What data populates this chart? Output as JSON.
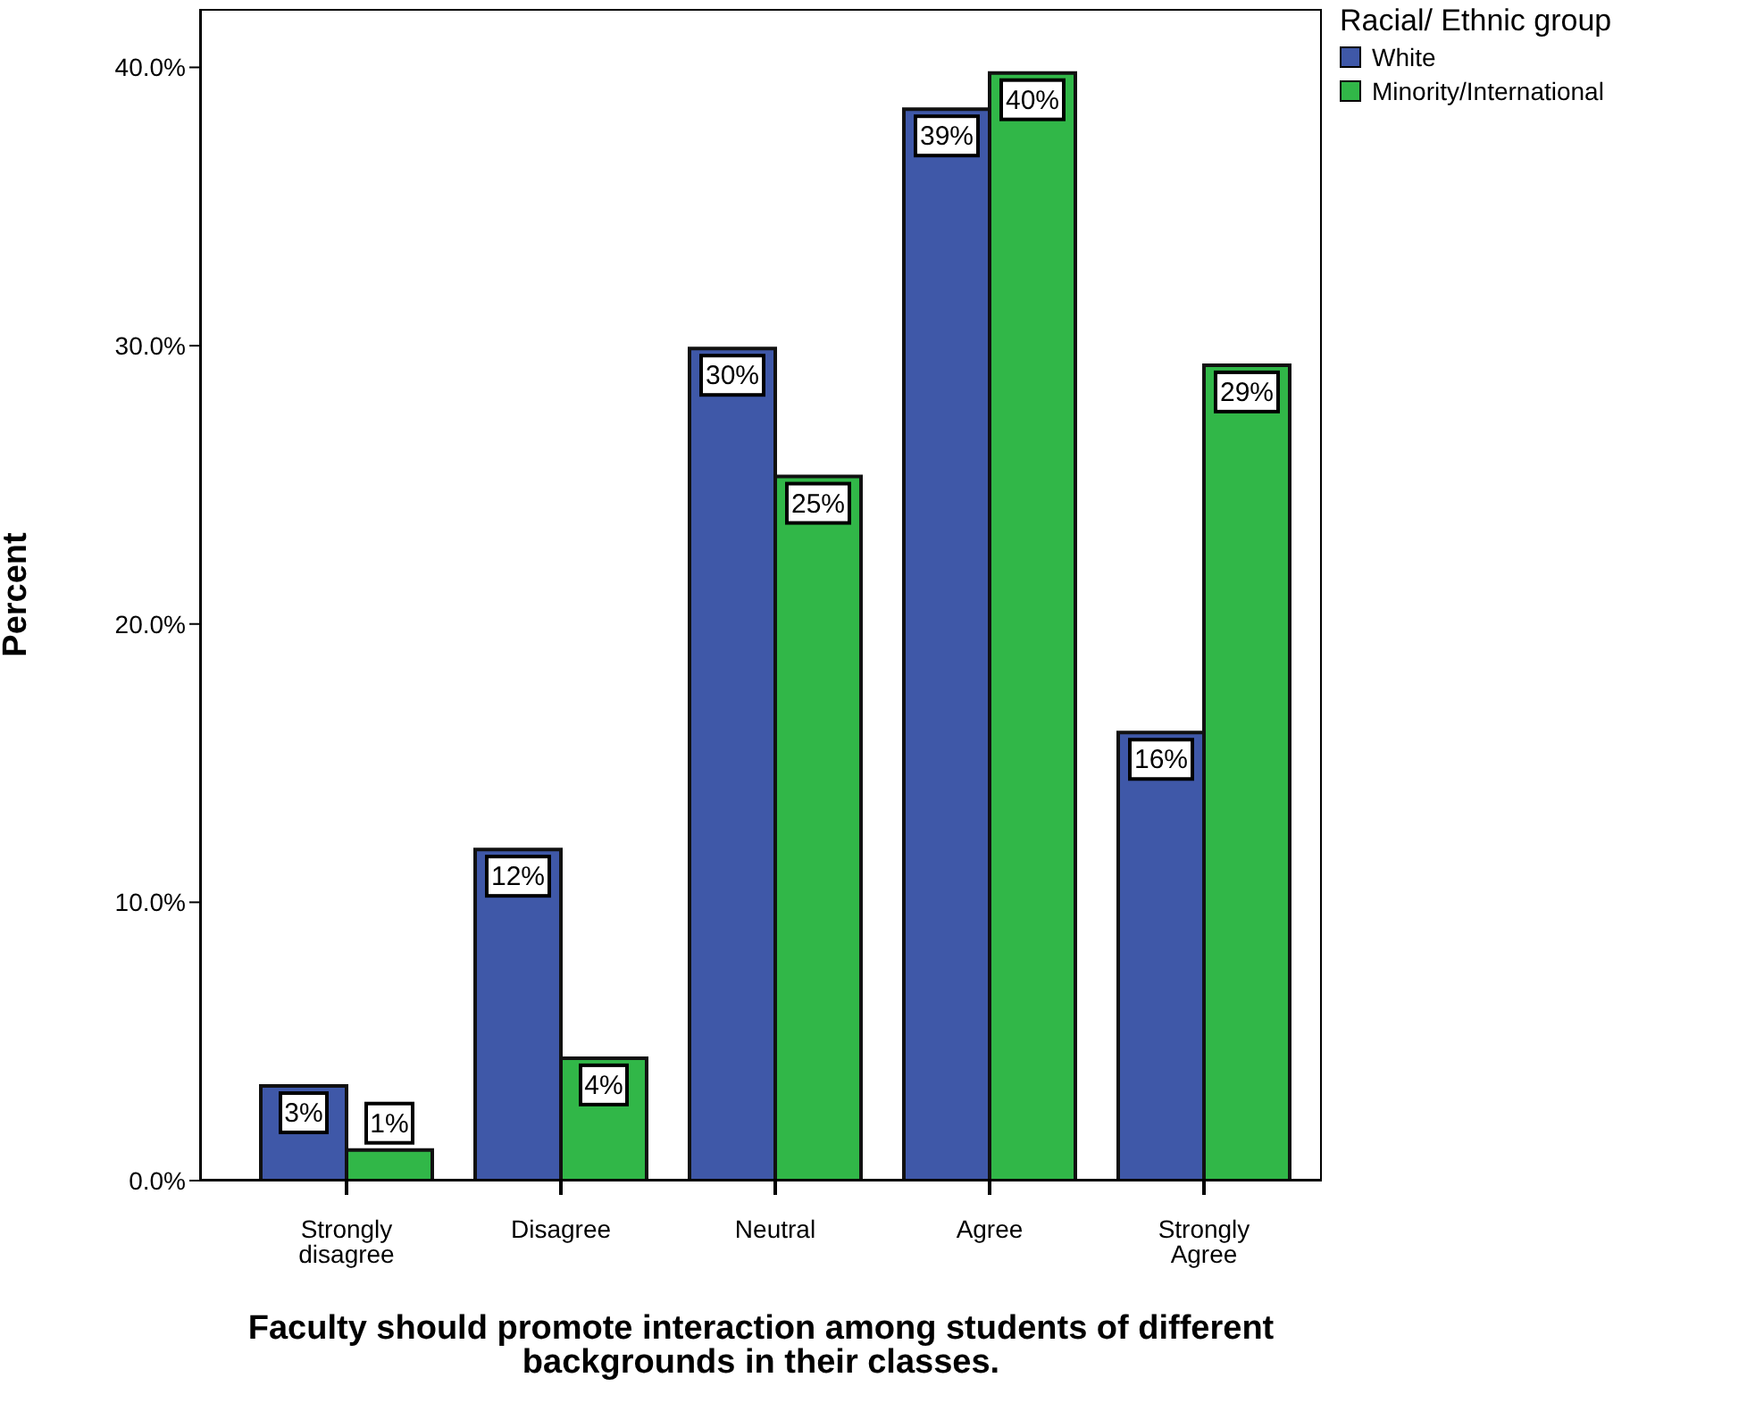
{
  "chart_data": {
    "type": "bar",
    "xlabel": "Faculty should promote interaction among students of different backgrounds in their classes.",
    "ylabel": "Percent",
    "legend_title": "Racial/ Ethnic group",
    "legend": "top right",
    "categories": [
      "Strongly disagree",
      "Disagree",
      "Neutral",
      "Agree",
      "Strongly Agree"
    ],
    "series": [
      {
        "name": "White",
        "color": "#3f58a8",
        "values": [
          3.4,
          11.9,
          29.9,
          38.5,
          16.1
        ],
        "value_labels": [
          "3%",
          "12%",
          "30%",
          "39%",
          "16%"
        ]
      },
      {
        "name": "Minority/International",
        "color": "#31b748",
        "values": [
          1.1,
          4.4,
          25.3,
          39.8,
          29.3
        ],
        "value_labels": [
          "1%",
          "4%",
          "25%",
          "40%",
          "29%"
        ]
      }
    ],
    "ylim": [
      0,
      42.1
    ],
    "yticks": [
      {
        "value": 0,
        "label": "0.0%"
      },
      {
        "value": 10,
        "label": "10.0%"
      },
      {
        "value": 20,
        "label": "20.0%"
      },
      {
        "value": 30,
        "label": "30.0%"
      },
      {
        "value": 40,
        "label": "40.0%"
      }
    ],
    "grid": false
  }
}
